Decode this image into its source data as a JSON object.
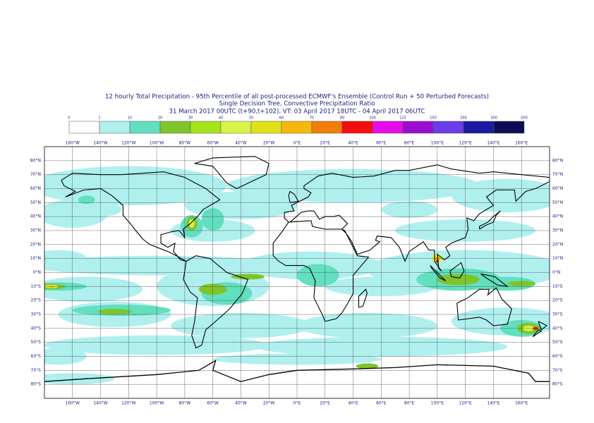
{
  "title": [
    "12 hourly Total Precipitation - 95th Percentile of all post-processed ECMWF's Ensemble (Control Run + 50 Perturbed Forecasts)",
    "Single Decision Tree, Convective Precipitation Ratio",
    "31 March 2017 00UTC (t+90,t+102), VT: 03 April 2017 18UTC - 04 April 2017 06UTC"
  ],
  "legend": {
    "levels": [
      0,
      1,
      10,
      20,
      30,
      40,
      50,
      60,
      70,
      80,
      100,
      125,
      150,
      200,
      300,
      500
    ],
    "colors": [
      "#ffffff",
      "#aff0ef",
      "#62dfbe",
      "#7fc42a",
      "#a6e31c",
      "#d9f24a",
      "#e1e118",
      "#f6b90b",
      "#f27d09",
      "#f50e0e",
      "#e60ce8",
      "#9a0ed0",
      "#6a3de6",
      "#1a1ba0",
      "#0d0d55"
    ]
  },
  "map": {
    "lon_ticks": [
      {
        "value": -160,
        "label": "160°W"
      },
      {
        "value": -140,
        "label": "140°W"
      },
      {
        "value": -120,
        "label": "120°W"
      },
      {
        "value": -100,
        "label": "100°W"
      },
      {
        "value": -80,
        "label": "80°W"
      },
      {
        "value": -60,
        "label": "60°W"
      },
      {
        "value": -40,
        "label": "40°W"
      },
      {
        "value": -20,
        "label": "20°W"
      },
      {
        "value": 0,
        "label": "0°E"
      },
      {
        "value": 20,
        "label": "20°E"
      },
      {
        "value": 40,
        "label": "40°E"
      },
      {
        "value": 60,
        "label": "60°E"
      },
      {
        "value": 80,
        "label": "80°E"
      },
      {
        "value": 100,
        "label": "100°E"
      },
      {
        "value": 120,
        "label": "120°E"
      },
      {
        "value": 140,
        "label": "140°E"
      },
      {
        "value": 160,
        "label": "160°E"
      }
    ],
    "lat_ticks": [
      {
        "value": 80,
        "label": "80°N"
      },
      {
        "value": 70,
        "label": "70°N"
      },
      {
        "value": 60,
        "label": "60°N"
      },
      {
        "value": 50,
        "label": "50°N"
      },
      {
        "value": 40,
        "label": "40°N"
      },
      {
        "value": 30,
        "label": "30°N"
      },
      {
        "value": 20,
        "label": "20°N"
      },
      {
        "value": 10,
        "label": "10°N"
      },
      {
        "value": 0,
        "label": "0°N"
      },
      {
        "value": -10,
        "label": "10°S"
      },
      {
        "value": -20,
        "label": "20°S"
      },
      {
        "value": -30,
        "label": "30°S"
      },
      {
        "value": -40,
        "label": "40°S"
      },
      {
        "value": -50,
        "label": "50°S"
      },
      {
        "value": -60,
        "label": "60°S"
      },
      {
        "value": -70,
        "label": "70°S"
      },
      {
        "value": -80,
        "label": "80°S"
      }
    ]
  }
}
